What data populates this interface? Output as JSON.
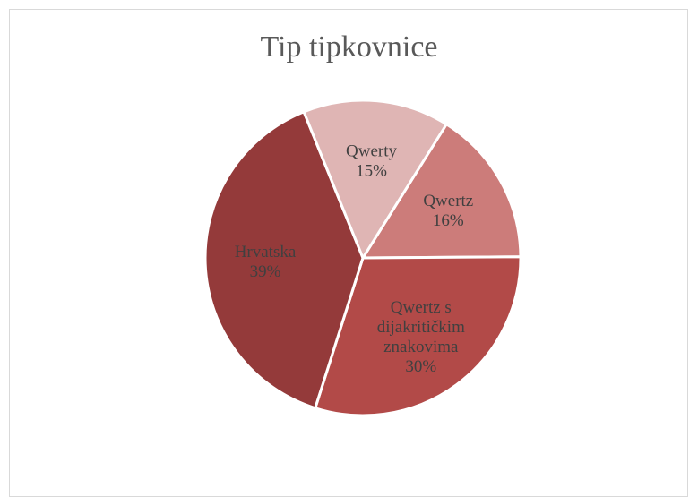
{
  "chart_data": {
    "type": "pie",
    "title": "Tip tipkovnice",
    "slices": [
      {
        "label_lines": [
          "Qwertz"
        ],
        "value": 16,
        "value_label": "16%",
        "color": "#cc7c7a"
      },
      {
        "label_lines": [
          "Qwertz s",
          "dijakritičkim",
          "znakovima"
        ],
        "value": 30,
        "value_label": "30%",
        "color": "#b24a48"
      },
      {
        "label_lines": [
          "Hrvatska"
        ],
        "value": 39,
        "value_label": "39%",
        "color": "#943a3a"
      },
      {
        "label_lines": [
          "Qwerty"
        ],
        "value": 15,
        "value_label": "15%",
        "color": "#dfb5b4"
      }
    ],
    "legend": "none"
  }
}
